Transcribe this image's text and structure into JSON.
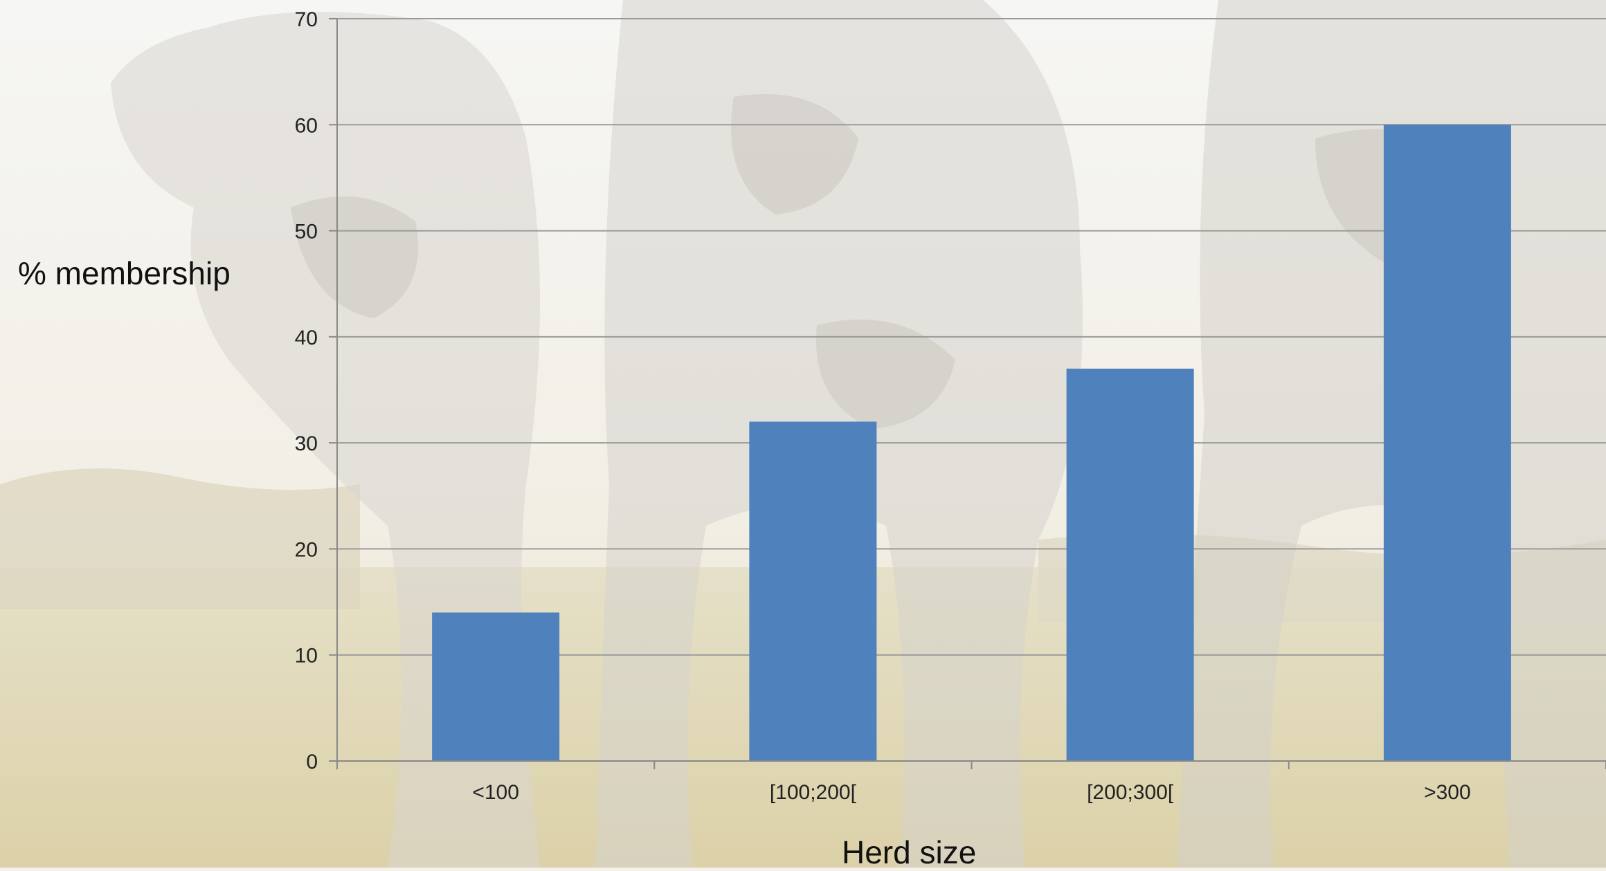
{
  "chart_data": {
    "type": "bar",
    "categories": [
      "<100",
      "[100;200[",
      "[200;300[",
      ">300"
    ],
    "values": [
      14,
      32,
      37,
      60
    ],
    "xlabel": "Herd size",
    "ylabel": "% membership",
    "ylim": [
      0,
      70
    ],
    "yticks": [
      0,
      10,
      20,
      30,
      40,
      50,
      60,
      70
    ],
    "grid": true,
    "bar_color": "#4f81bd",
    "gridline_color": "#9a9a9a"
  }
}
